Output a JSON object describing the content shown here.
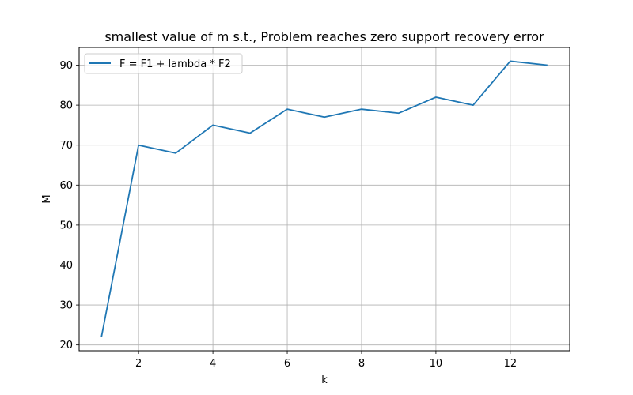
{
  "chart_data": {
    "type": "line",
    "title": "smallest value of m s.t., Problem reaches zero support recovery error",
    "xlabel": "k",
    "ylabel": "M",
    "x": [
      1,
      2,
      3,
      4,
      5,
      6,
      7,
      8,
      9,
      10,
      11,
      12,
      13
    ],
    "series": [
      {
        "name": "F = F1 + lambda * F2",
        "values": [
          22,
          70,
          68,
          75,
          73,
          79,
          77,
          79,
          78,
          82,
          80,
          91,
          90
        ],
        "color": "#1f77b4"
      }
    ],
    "xticks": [
      2,
      4,
      6,
      8,
      10,
      12
    ],
    "yticks": [
      20,
      30,
      40,
      50,
      60,
      70,
      80,
      90
    ],
    "xlim": [
      0.4,
      13.6
    ],
    "ylim": [
      18.55,
      94.45
    ],
    "grid": true,
    "legend_position": "top-left"
  }
}
